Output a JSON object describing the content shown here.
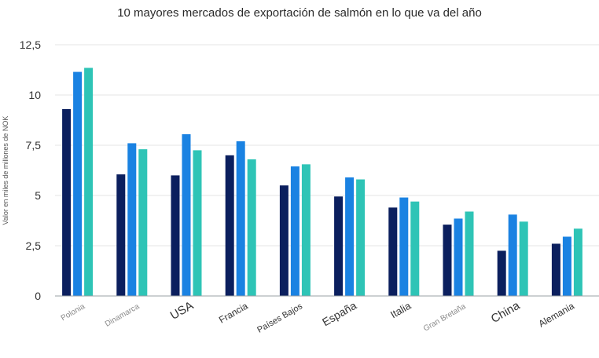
{
  "chart_data": {
    "type": "bar",
    "title": "10 mayores mercados de exportación de salmón en lo que va del año",
    "xlabel": "",
    "ylabel": "Valor en miles de millones de NOK",
    "ylim": [
      0,
      12.5
    ],
    "yticks": [
      "0",
      "2,5",
      "5",
      "7,5",
      "10",
      "12,5"
    ],
    "grid": true,
    "legend": "none",
    "categories": [
      "Polonia",
      "Dinamarca",
      "USA",
      "Francia",
      "Países Bajos",
      "España",
      "Italia",
      "Gran Bretaña",
      "China",
      "Alemania"
    ],
    "series": [
      {
        "color": "#0b1f5e",
        "values": [
          9.3,
          6.05,
          6.0,
          7.0,
          5.5,
          4.95,
          4.4,
          3.55,
          2.25,
          2.6
        ]
      },
      {
        "color": "#1a82e2",
        "values": [
          11.15,
          7.6,
          8.05,
          7.7,
          6.45,
          5.9,
          4.9,
          3.85,
          4.05,
          2.95
        ]
      },
      {
        "color": "#2ec4b6",
        "values": [
          11.35,
          7.3,
          7.25,
          6.8,
          6.55,
          5.8,
          4.7,
          4.2,
          3.7,
          3.35
        ]
      }
    ]
  }
}
